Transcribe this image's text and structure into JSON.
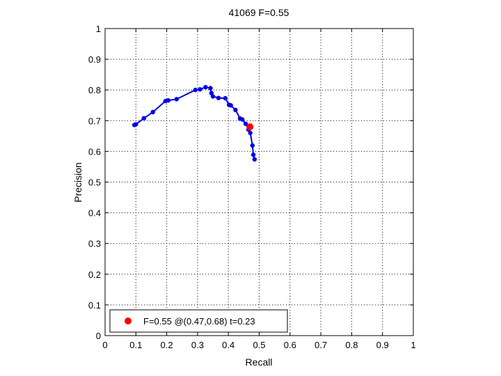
{
  "chart_data": {
    "type": "line",
    "title": "41069 F=0.55",
    "xlabel": "Recall",
    "ylabel": "Precision",
    "xlim": [
      0,
      1
    ],
    "ylim": [
      0,
      1
    ],
    "xticks": [
      "0",
      "0.1",
      "0.2",
      "0.3",
      "0.4",
      "0.5",
      "0.6",
      "0.7",
      "0.8",
      "0.9",
      "1"
    ],
    "yticks": [
      "0",
      "0.1",
      "0.2",
      "0.3",
      "0.4",
      "0.5",
      "0.6",
      "0.7",
      "0.8",
      "0.9",
      "1"
    ],
    "grid": true,
    "legend_position": "bottom-left",
    "colors": {
      "curve": "#0000e6",
      "best_point": "#ff0000",
      "grid": "#000000"
    },
    "series": [
      {
        "x": [
          0.095,
          0.1,
          0.126,
          0.155,
          0.196,
          0.205,
          0.232,
          0.293,
          0.308,
          0.326,
          0.342,
          0.345,
          0.35,
          0.368,
          0.39,
          0.402,
          0.408,
          0.423,
          0.438,
          0.445,
          0.456,
          0.465,
          0.471,
          0.478,
          0.481,
          0.485
        ],
        "y": [
          0.686,
          0.688,
          0.708,
          0.728,
          0.764,
          0.766,
          0.77,
          0.8,
          0.802,
          0.809,
          0.806,
          0.79,
          0.779,
          0.774,
          0.773,
          0.752,
          0.75,
          0.735,
          0.707,
          0.704,
          0.69,
          0.671,
          0.66,
          0.619,
          0.589,
          0.574
        ]
      }
    ],
    "best_point": {
      "x": 0.47,
      "y": 0.68
    },
    "legend": {
      "label": "F=0.55 @(0.47,0.68) t=0.23"
    }
  }
}
